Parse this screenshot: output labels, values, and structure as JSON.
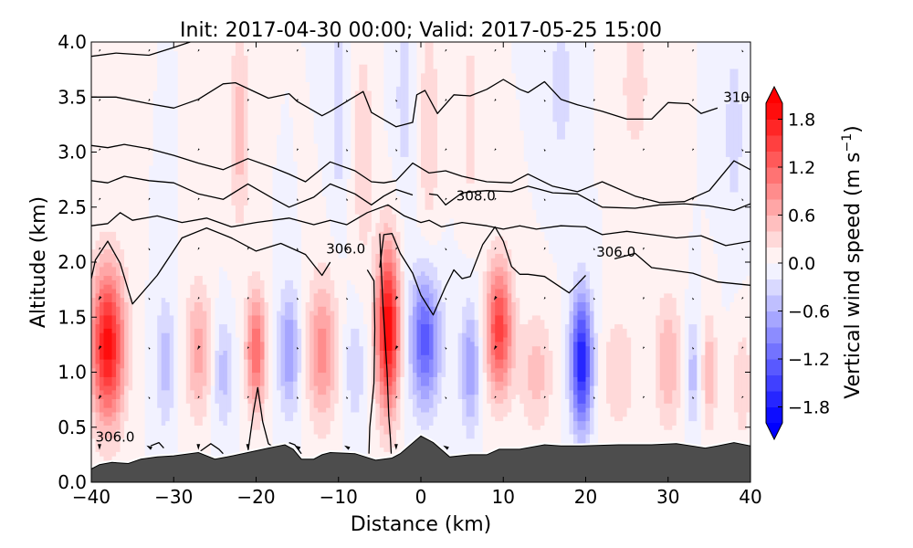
{
  "chart_data": {
    "type": "heatmap",
    "subtype": "filled-contour cross-section with potential-temperature contours, wind vectors and terrain",
    "title": "Init: 2017-04-30 00:00; Valid: 2017-05-25 15:00",
    "xlabel": "Distance (km)",
    "ylabel": "Altitude (km)",
    "xlim": [
      -40,
      40
    ],
    "ylim": [
      0.0,
      4.0
    ],
    "xticks": [
      -40,
      -30,
      -20,
      -10,
      0,
      10,
      20,
      30,
      40
    ],
    "xtick_labels": [
      "−40",
      "−30",
      "−20",
      "−10",
      "0",
      "10",
      "20",
      "30",
      "40"
    ],
    "yticks": [
      0.0,
      0.5,
      1.0,
      1.5,
      2.0,
      2.5,
      3.0,
      3.5,
      4.0
    ],
    "ytick_labels": [
      "0.0",
      "0.5",
      "1.0",
      "1.5",
      "2.0",
      "2.5",
      "3.0",
      "3.5",
      "4.0"
    ],
    "grid": false,
    "colorbar": {
      "label": "Vertical wind speed (m s⁻¹)",
      "label_main": "Vertical wind speed (m s",
      "label_sup": "−1",
      "label_close": ")",
      "vmin": -2.0,
      "vmax": 2.0,
      "levels_step": 0.2,
      "extend": "both",
      "cmap": "bwr",
      "ticks": [
        -1.8,
        -1.2,
        -0.6,
        0.0,
        0.6,
        1.2,
        1.8
      ],
      "tick_labels": [
        "−1.8",
        "−1.2",
        "−0.6",
        "0.0",
        "0.6",
        "1.2",
        "1.8"
      ],
      "low_color": "#0000ff",
      "mid_color": "#ffffff",
      "high_color": "#ff0000"
    },
    "vertical_velocity_cells": [
      {
        "x": -38,
        "z": 1.25,
        "w": 1.9,
        "wx": 2.0,
        "wz": 0.7
      },
      {
        "x": -31,
        "z": 1.1,
        "w": -0.5,
        "wx": 1.2,
        "wz": 0.6
      },
      {
        "x": -27,
        "z": 1.2,
        "w": 0.7,
        "wx": 1.6,
        "wz": 0.6
      },
      {
        "x": -24,
        "z": 1.0,
        "w": -0.5,
        "wx": 1.2,
        "wz": 0.5
      },
      {
        "x": -20,
        "z": 1.2,
        "w": 1.2,
        "wx": 1.2,
        "wz": 0.55
      },
      {
        "x": -16,
        "z": 1.2,
        "w": -0.8,
        "wx": 1.3,
        "wz": 0.55
      },
      {
        "x": -12,
        "z": 1.2,
        "w": 0.9,
        "wx": 1.8,
        "wz": 0.65
      },
      {
        "x": -8,
        "z": 1.05,
        "w": -0.4,
        "wx": 1.2,
        "wz": 0.5
      },
      {
        "x": -4,
        "z": 1.4,
        "w": 2.0,
        "wx": 1.4,
        "wz": 0.75
      },
      {
        "x": 0.5,
        "z": 1.3,
        "w": -1.3,
        "wx": 1.8,
        "wz": 0.6
      },
      {
        "x": 6,
        "z": 1.05,
        "w": -0.8,
        "wx": 1.2,
        "wz": 0.55
      },
      {
        "x": 9.5,
        "z": 1.4,
        "w": 1.5,
        "wx": 1.6,
        "wz": 0.6
      },
      {
        "x": 14,
        "z": 1.0,
        "w": 0.5,
        "wx": 2.0,
        "wz": 0.55
      },
      {
        "x": 19.5,
        "z": 1.1,
        "w": -1.8,
        "wx": 1.3,
        "wz": 0.6
      },
      {
        "x": 24,
        "z": 1.0,
        "w": 0.4,
        "wx": 2.0,
        "wz": 0.55
      },
      {
        "x": 30,
        "z": 1.1,
        "w": 0.6,
        "wx": 1.6,
        "wz": 0.6
      },
      {
        "x": 33,
        "z": 1.0,
        "w": -0.5,
        "wx": 0.9,
        "wz": 0.5
      },
      {
        "x": 35,
        "z": 1.0,
        "w": 0.6,
        "wx": 0.9,
        "wz": 0.5
      },
      {
        "x": 39,
        "z": 0.9,
        "w": 0.4,
        "wx": 1.2,
        "wz": 0.5
      },
      {
        "x": -22,
        "z": 3.2,
        "w": 0.5,
        "wx": 1.3,
        "wz": 0.9
      },
      {
        "x": -7,
        "z": 3.0,
        "w": 0.4,
        "wx": 1.2,
        "wz": 1.0
      },
      {
        "x": 1,
        "z": 3.2,
        "w": 0.4,
        "wx": 1.2,
        "wz": 1.0
      },
      {
        "x": 6,
        "z": 3.3,
        "w": 0.35,
        "wx": 1.0,
        "wz": 0.8
      },
      {
        "x": -10,
        "z": 3.4,
        "w": -0.35,
        "wx": 1.0,
        "wz": 0.9
      },
      {
        "x": -2,
        "z": 3.5,
        "w": -0.3,
        "wx": 1.2,
        "wz": 0.9
      },
      {
        "x": 17,
        "z": 3.6,
        "w": -0.3,
        "wx": 1.5,
        "wz": 0.8
      },
      {
        "x": 26,
        "z": 3.6,
        "w": 0.3,
        "wx": 2.0,
        "wz": 0.8
      },
      {
        "x": 38,
        "z": 3.2,
        "w": -0.3,
        "wx": 1.3,
        "wz": 0.9
      }
    ],
    "terrain_km": {
      "x": [
        -40,
        -39,
        -37.5,
        -35.5,
        -34,
        -32,
        -30,
        -27,
        -25,
        -23.5,
        -21,
        -18.5,
        -16.5,
        -15.5,
        -14.5,
        -13,
        -12,
        -11,
        -8,
        -5.5,
        -3.5,
        -2.5,
        0,
        1.5,
        3.5,
        6,
        8,
        9.5,
        12,
        15,
        17,
        19.5,
        24,
        28,
        31,
        34.5,
        36,
        38,
        40
      ],
      "z": [
        0.12,
        0.16,
        0.18,
        0.17,
        0.21,
        0.23,
        0.24,
        0.27,
        0.21,
        0.23,
        0.27,
        0.31,
        0.34,
        0.3,
        0.21,
        0.21,
        0.25,
        0.27,
        0.26,
        0.2,
        0.22,
        0.26,
        0.42,
        0.36,
        0.23,
        0.25,
        0.25,
        0.3,
        0.3,
        0.34,
        0.33,
        0.33,
        0.34,
        0.34,
        0.35,
        0.31,
        0.33,
        0.36,
        0.33
      ]
    },
    "theta_contours": [
      {
        "level": 310.0,
        "x": [
          -40,
          -37,
          -33,
          -30,
          -28
        ],
        "z": [
          3.87,
          3.9,
          3.88,
          3.95,
          4.0
        ]
      },
      {
        "level": 310.0,
        "x": [
          -40,
          -37,
          -33,
          -30,
          -27,
          -24,
          -22.5,
          -18.5,
          -16,
          -15,
          -12,
          -11,
          -7,
          -6,
          -3,
          -1,
          -0.5,
          0.5,
          2,
          4,
          6,
          8,
          10,
          12,
          13,
          15,
          17,
          19,
          22,
          25,
          28,
          30,
          32.5,
          34,
          36
        ],
        "z": [
          3.5,
          3.5,
          3.44,
          3.4,
          3.48,
          3.62,
          3.63,
          3.49,
          3.53,
          3.46,
          3.33,
          3.37,
          3.55,
          3.36,
          3.23,
          3.27,
          3.52,
          3.56,
          3.35,
          3.52,
          3.51,
          3.57,
          3.66,
          3.57,
          3.54,
          3.64,
          3.48,
          3.43,
          3.37,
          3.3,
          3.3,
          3.45,
          3.44,
          3.35,
          3.4
        ]
      },
      {
        "level": 308.0,
        "x": [
          -40,
          -38,
          -36,
          -33,
          -30,
          -27,
          -24,
          -21,
          -18,
          -16,
          -14,
          -11,
          -8,
          -6,
          -4.5,
          -3,
          -1,
          1,
          3,
          5,
          8,
          11,
          13,
          16,
          19,
          22,
          26,
          29,
          32,
          35,
          38,
          40
        ],
        "z": [
          3.06,
          3.04,
          3.07,
          3.03,
          2.97,
          2.9,
          2.84,
          2.94,
          2.86,
          2.8,
          2.73,
          2.91,
          2.83,
          2.73,
          2.72,
          2.74,
          2.9,
          2.81,
          2.83,
          2.78,
          2.73,
          2.72,
          2.8,
          2.69,
          2.64,
          2.73,
          2.6,
          2.54,
          2.55,
          2.65,
          2.92,
          2.84
        ]
      },
      {
        "level": 308.0,
        "x": [
          -40,
          -38,
          -36,
          -33,
          -30,
          -27,
          -24,
          -21,
          -18,
          -16,
          -13,
          -11,
          -8,
          -6,
          -4.5,
          -3,
          -1
        ],
        "z": [
          2.74,
          2.72,
          2.78,
          2.74,
          2.72,
          2.62,
          2.57,
          2.71,
          2.58,
          2.5,
          2.59,
          2.71,
          2.62,
          2.52,
          2.6,
          2.66,
          2.61
        ]
      },
      {
        "level": 308.0,
        "x": [
          1,
          2,
          3,
          5,
          8,
          11,
          13,
          16,
          19,
          22,
          26,
          29,
          32,
          35,
          38,
          40
        ],
        "z": [
          2.62,
          2.61,
          2.52,
          2.63,
          2.65,
          2.64,
          2.69,
          2.63,
          2.62,
          2.5,
          2.49,
          2.52,
          2.53,
          2.51,
          2.47,
          2.53
        ]
      },
      {
        "level": 306.0,
        "x": [
          -40,
          -38,
          -36.5,
          -35,
          -32,
          -29,
          -26,
          -23,
          -20,
          -16,
          -13,
          -11,
          -9,
          -6.5,
          -4,
          -2,
          0,
          1,
          2.5,
          5,
          8,
          10,
          12,
          14,
          17,
          20,
          22,
          25,
          28,
          31,
          34,
          37,
          40
        ],
        "z": [
          2.33,
          2.35,
          2.45,
          2.38,
          2.42,
          2.36,
          2.4,
          2.32,
          2.36,
          2.4,
          2.34,
          2.38,
          2.34,
          2.45,
          2.52,
          2.42,
          2.36,
          2.38,
          2.32,
          2.36,
          2.33,
          2.3,
          2.33,
          2.3,
          2.33,
          2.32,
          2.25,
          2.28,
          2.25,
          2.22,
          2.24,
          2.15,
          2.19
        ]
      },
      {
        "level": 306.0,
        "x": [
          -40,
          -39.5,
          -38,
          -36.5,
          -35,
          -32,
          -29,
          -26,
          -23,
          -20,
          -17,
          -14,
          -12,
          -11
        ],
        "z": [
          1.85,
          2.02,
          2.19,
          1.99,
          1.62,
          1.88,
          2.22,
          2.31,
          2.22,
          2.1,
          2.17,
          2.07,
          1.88,
          2.0
        ]
      },
      {
        "level": 306.0,
        "x": [
          -5,
          -4.5,
          -3.5,
          -2.5,
          -1,
          0,
          1.5,
          3,
          4,
          5,
          6,
          7.5,
          9,
          10,
          11,
          12,
          13,
          15,
          18,
          20
        ],
        "z": [
          1.95,
          2.25,
          2.26,
          2.08,
          1.9,
          1.7,
          1.52,
          1.78,
          1.93,
          1.85,
          1.87,
          2.16,
          2.32,
          2.19,
          1.96,
          1.89,
          1.89,
          1.87,
          1.72,
          1.88
        ]
      },
      {
        "level": 306.0,
        "x": [
          23.5,
          26,
          28,
          30,
          33,
          36,
          40
        ],
        "z": [
          2.03,
          2.08,
          1.95,
          1.93,
          1.9,
          1.82,
          1.79
        ]
      },
      {
        "level": 306.0,
        "x": [
          -5,
          -4.6,
          -4.1,
          -3.9,
          -3.7,
          -3.6
        ],
        "z": [
          2.26,
          1.6,
          1.0,
          0.6,
          0.4,
          0.26
        ]
      },
      {
        "level": 306.0,
        "x": [
          -6.5,
          -5.7,
          -5.6,
          -5.7,
          -6.2,
          -6.3
        ],
        "z": [
          1.93,
          1.83,
          1.4,
          0.9,
          0.5,
          0.26
        ]
      },
      {
        "level": 306.0,
        "x": [
          -21,
          -20.3,
          -19.8,
          -19.2,
          -18.5,
          -17.5
        ],
        "z": [
          0.27,
          0.65,
          0.86,
          0.55,
          0.35,
          0.3
        ]
      },
      {
        "level": 306.0,
        "x": [
          -27,
          -25.5,
          -24.5,
          -24
        ],
        "z": [
          0.27,
          0.35,
          0.3,
          0.26
        ]
      },
      {
        "level": 306.0,
        "x": [
          -16,
          -15.3,
          -14.5
        ],
        "z": [
          0.36,
          0.34,
          0.26
        ]
      },
      {
        "level": 306.0,
        "x": [
          -32.8,
          -31.8,
          -31.2
        ],
        "z": [
          0.33,
          0.36,
          0.31
        ]
      }
    ],
    "contour_labels": [
      {
        "text": "306.0",
        "x": -39.5,
        "z": 0.41
      },
      {
        "text": "306.0",
        "x": -11.5,
        "z": 2.12
      },
      {
        "text": "308.0",
        "x": 4.3,
        "z": 2.6
      },
      {
        "text": "306.0",
        "x": 21.3,
        "z": 2.09
      },
      {
        "text": "310",
        "x": 36.7,
        "z": 3.5
      }
    ],
    "wind_vectors": {
      "x_spacing_km": 12.0,
      "x_positions_km": [
        -36.0,
        -24.0,
        -12.0,
        0.0,
        12.0,
        24.0,
        36.0
      ],
      "z_positions_km": [
        0.4,
        0.8,
        1.2,
        1.6,
        2.0,
        2.4,
        2.8,
        3.2,
        3.6,
        4.0
      ],
      "description": "small black quiver arrows, mostly short/point-like, larger near terrain"
    },
    "terrain_color": "#4d4d4d"
  }
}
